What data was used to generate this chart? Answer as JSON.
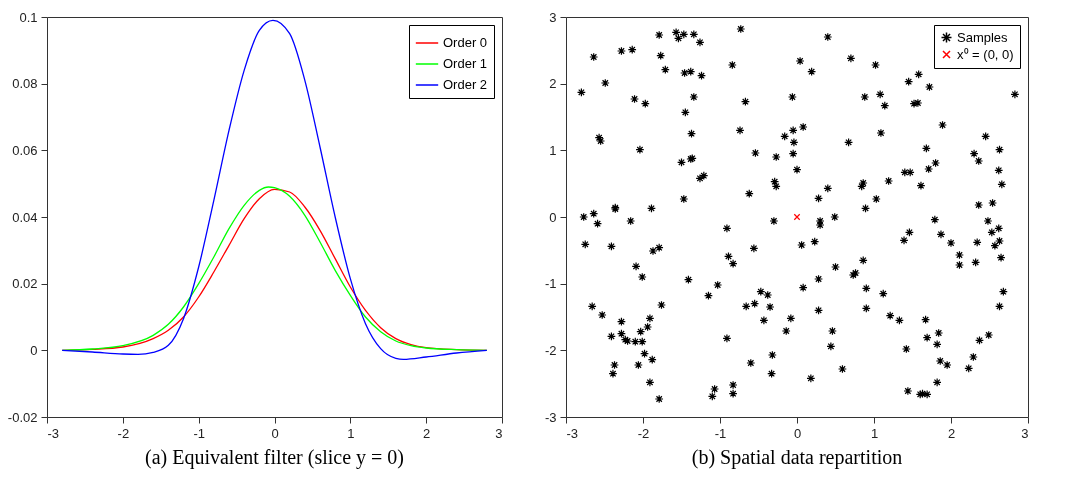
{
  "chart_data": [
    {
      "type": "line",
      "title": "(a)  Equivalent filter (slice y = 0)",
      "xlim": [
        -3,
        3
      ],
      "xticks": [
        -3,
        -2,
        -1,
        0,
        1,
        2,
        3
      ],
      "ylim": [
        -0.02,
        0.1
      ],
      "yticks": [
        -0.02,
        0,
        0.02,
        0.04,
        0.06,
        0.08,
        0.1
      ],
      "legend": "top right",
      "series": [
        {
          "name": "Order 0",
          "color": "#ff0000",
          "x": [
            -2.8,
            -2.4,
            -2.0,
            -1.6,
            -1.4,
            -1.2,
            -1.0,
            -0.8,
            -0.6,
            -0.4,
            -0.2,
            0,
            0.2,
            0.4,
            0.6,
            0.8,
            1.0,
            1.2,
            1.4,
            1.6,
            1.8,
            2.0,
            2.4,
            2.8
          ],
          "values": [
            0,
            0.0003,
            0.001,
            0.0035,
            0.006,
            0.01,
            0.016,
            0.0235,
            0.0315,
            0.0395,
            0.0455,
            0.0483,
            0.0475,
            0.043,
            0.036,
            0.0275,
            0.019,
            0.012,
            0.0068,
            0.0035,
            0.0017,
            0.0008,
            0.0002,
            0
          ]
        },
        {
          "name": "Order 1",
          "color": "#00ff00",
          "x": [
            -2.8,
            -2.4,
            -2.0,
            -1.6,
            -1.4,
            -1.2,
            -1.0,
            -0.8,
            -0.6,
            -0.4,
            -0.2,
            -0.08,
            0,
            0.2,
            0.4,
            0.6,
            0.8,
            1.0,
            1.2,
            1.4,
            1.6,
            1.8,
            2.0,
            2.4,
            2.8
          ],
          "values": [
            0,
            0.0004,
            0.0014,
            0.0045,
            0.0078,
            0.013,
            0.02,
            0.028,
            0.0365,
            0.0435,
            0.048,
            0.049,
            0.0488,
            0.0462,
            0.0405,
            0.0325,
            0.024,
            0.0165,
            0.01,
            0.0056,
            0.0028,
            0.0014,
            0.0007,
            0.0002,
            0
          ]
        },
        {
          "name": "Order 2",
          "color": "#0000ff",
          "x": [
            -2.8,
            -2.4,
            -2.0,
            -1.8,
            -1.6,
            -1.4,
            -1.2,
            -1.0,
            -0.8,
            -0.6,
            -0.4,
            -0.2,
            -0.02,
            0.2,
            0.4,
            0.6,
            0.8,
            1.0,
            1.2,
            1.4,
            1.6,
            1.7,
            2.0,
            2.4,
            2.8
          ],
          "values": [
            0,
            -0.0005,
            -0.0011,
            -0.0012,
            -0.0006,
            0.0015,
            0.0095,
            0.025,
            0.045,
            0.066,
            0.084,
            0.096,
            0.099,
            0.095,
            0.081,
            0.061,
            0.04,
            0.0215,
            0.008,
            0.0005,
            -0.0024,
            -0.0027,
            -0.002,
            -0.0008,
            0
          ]
        }
      ]
    },
    {
      "type": "scatter",
      "title": "(b)  Spatial data repartition",
      "xlim": [
        -3,
        3
      ],
      "xticks": [
        -3,
        -2,
        -1,
        0,
        1,
        2,
        3
      ],
      "ylim": [
        -3,
        3
      ],
      "yticks": [
        -3,
        -2,
        -1,
        0,
        1,
        2,
        3
      ],
      "legend": "top right",
      "series": [
        {
          "name": "Samples",
          "color": "#000000",
          "marker": "cross",
          "x": [
            -2.8,
            -2.64,
            -2.49,
            -2.57,
            -2.55,
            -2.28,
            -2.14,
            -2.11,
            -1.97,
            -2.04,
            -1.79,
            -1.77,
            -1.71,
            -1.57,
            -1.54,
            -1.47,
            -1.34,
            -1.26,
            -1.46,
            -1.38,
            -1.24,
            -1.34,
            -1.45,
            -1.37,
            -1.5,
            -1.38,
            -1.36,
            -1.26,
            -1.21,
            -1.47,
            -2.36,
            -2.36,
            -1.89,
            -2.64,
            -2.77,
            -2.59,
            -2.16,
            -0.73,
            -0.84,
            -0.67,
            -0.74,
            -0.54,
            -0.27,
            -0.16,
            -0.05,
            -0.04,
            -0.05,
            -0.06,
            0.0,
            -0.29,
            -0.27,
            -0.62,
            0.04,
            0.08,
            0.4,
            0.19,
            0.7,
            1.02,
            1.45,
            1.58,
            1.72,
            0.88,
            1.08,
            1.14,
            1.52,
            1.57,
            2.83,
            0.67,
            1.09,
            1.89,
            2.45,
            1.68,
            2.3,
            2.36,
            2.63,
            1.8,
            1.71,
            2.62,
            2.66,
            1.4,
            1.47,
            1.61,
            1.19,
            0.86,
            0.84,
            0.4,
            0.28,
            1.03,
            0.89,
            2.36,
            2.54,
            0.49,
            0.3,
            0.3,
            1.79,
            2.48,
            2.53,
            2.62,
            2.63,
            2.57,
            2.65,
            1.46,
            1.39,
            1.87,
            2.0,
            2.11,
            2.11,
            2.34,
            2.32,
            0.06,
            0.23,
            0.5,
            0.86,
            0.73,
            0.76,
            0.28,
            0.08,
            0.9,
            1.12,
            2.63,
            2.68,
            0.28,
            0.9,
            1.21,
            1.33,
            1.67,
            0.46,
            0.44,
            1.69,
            1.84,
            1.82,
            1.42,
            2.49,
            2.37,
            2.29,
            2.23,
            1.86,
            1.95,
            1.82,
            0.59,
            0.18,
            1.44,
            1.6,
            1.63,
            1.69,
            -2.75,
            -2.41,
            -1.87,
            -1.79,
            -2.09,
            -2.01,
            -1.41,
            -0.91,
            -0.89,
            -0.83,
            -0.3,
            -0.56,
            -1.03,
            -1.15,
            -2.66,
            -2.53,
            -1.76,
            -2.28,
            -1.91,
            -1.94,
            -2.03,
            -2.41,
            -2.28,
            -2.23,
            -2.2,
            -2.1,
            -2.01,
            -1.98,
            -1.88,
            -2.06,
            -2.37,
            -2.39,
            -1.91,
            -1.79,
            -0.66,
            -0.55,
            -0.47,
            -0.38,
            -0.35,
            -0.43,
            -0.08,
            -0.14,
            -0.91,
            -0.32,
            -0.6,
            -0.33,
            -1.07,
            -1.1,
            -0.83,
            -0.83
          ],
          "values": [
            1.87,
            2.4,
            2.01,
            1.19,
            1.14,
            2.49,
            2.51,
            1.77,
            1.7,
            1.01,
            2.73,
            2.42,
            2.21,
            2.77,
            2.68,
            2.74,
            2.74,
            2.62,
            2.16,
            2.18,
            2.12,
            1.8,
            1.57,
            1.25,
            0.82,
            0.87,
            0.88,
            0.58,
            0.62,
            0.27,
            0.14,
            0.12,
            0.13,
            0.05,
            0.0,
            -0.1,
            -0.06,
            2.82,
            2.28,
            1.73,
            1.3,
            0.96,
            0.9,
            1.21,
            1.3,
            1.12,
            0.95,
            1.8,
            0.71,
            0.53,
            0.46,
            0.35,
            2.34,
            1.35,
            2.7,
            2.18,
            2.38,
            2.28,
            2.03,
            2.14,
            1.95,
            1.8,
            1.84,
            1.67,
            1.7,
            1.71,
            1.84,
            1.12,
            1.26,
            1.38,
            1.21,
            1.03,
            0.95,
            0.84,
            1.01,
            0.81,
            0.72,
            0.7,
            0.49,
            0.67,
            0.67,
            0.47,
            0.54,
            0.51,
            0.46,
            0.43,
            0.28,
            0.27,
            0.13,
            0.18,
            0.21,
            0.0,
            -0.06,
            -0.12,
            -0.04,
            -0.06,
            -0.23,
            -0.17,
            -0.36,
            -0.43,
            -0.61,
            -0.23,
            -0.35,
            -0.26,
            -0.39,
            -0.57,
            -0.72,
            -0.38,
            -0.68,
            -0.42,
            -0.37,
            -0.75,
            -0.65,
            -0.87,
            -0.84,
            -0.93,
            -1.06,
            -1.07,
            -1.15,
            -1.34,
            -1.12,
            -1.4,
            -1.37,
            -1.48,
            -1.55,
            -1.54,
            -1.71,
            -1.94,
            -1.81,
            -1.74,
            -1.91,
            -1.98,
            -1.77,
            -1.85,
            -2.1,
            -2.27,
            -2.16,
            -2.22,
            -2.48,
            -2.28,
            -2.42,
            -2.61,
            -2.66,
            -2.65,
            -2.66,
            -0.41,
            -0.44,
            -0.51,
            -0.46,
            -0.74,
            -0.9,
            -0.94,
            -0.17,
            -0.59,
            -0.7,
            -0.06,
            -0.47,
            -1.02,
            -1.18,
            -1.34,
            -1.47,
            -1.32,
            -1.57,
            -1.52,
            -1.65,
            -1.72,
            -1.79,
            -1.75,
            -1.84,
            -1.86,
            -1.87,
            -1.87,
            -2.05,
            -2.14,
            -2.22,
            -2.22,
            -2.35,
            -2.48,
            -2.73,
            -1.34,
            -1.3,
            -1.12,
            -1.17,
            -1.35,
            -1.55,
            -1.52,
            -1.71,
            -1.82,
            -2.07,
            -2.19,
            -2.35,
            -2.58,
            -2.69,
            -2.52,
            -2.65
          ]
        },
        {
          "name": "x⁰ = (0, 0)",
          "color": "#ff0000",
          "x": [
            0
          ],
          "values": [
            0
          ]
        }
      ]
    }
  ]
}
